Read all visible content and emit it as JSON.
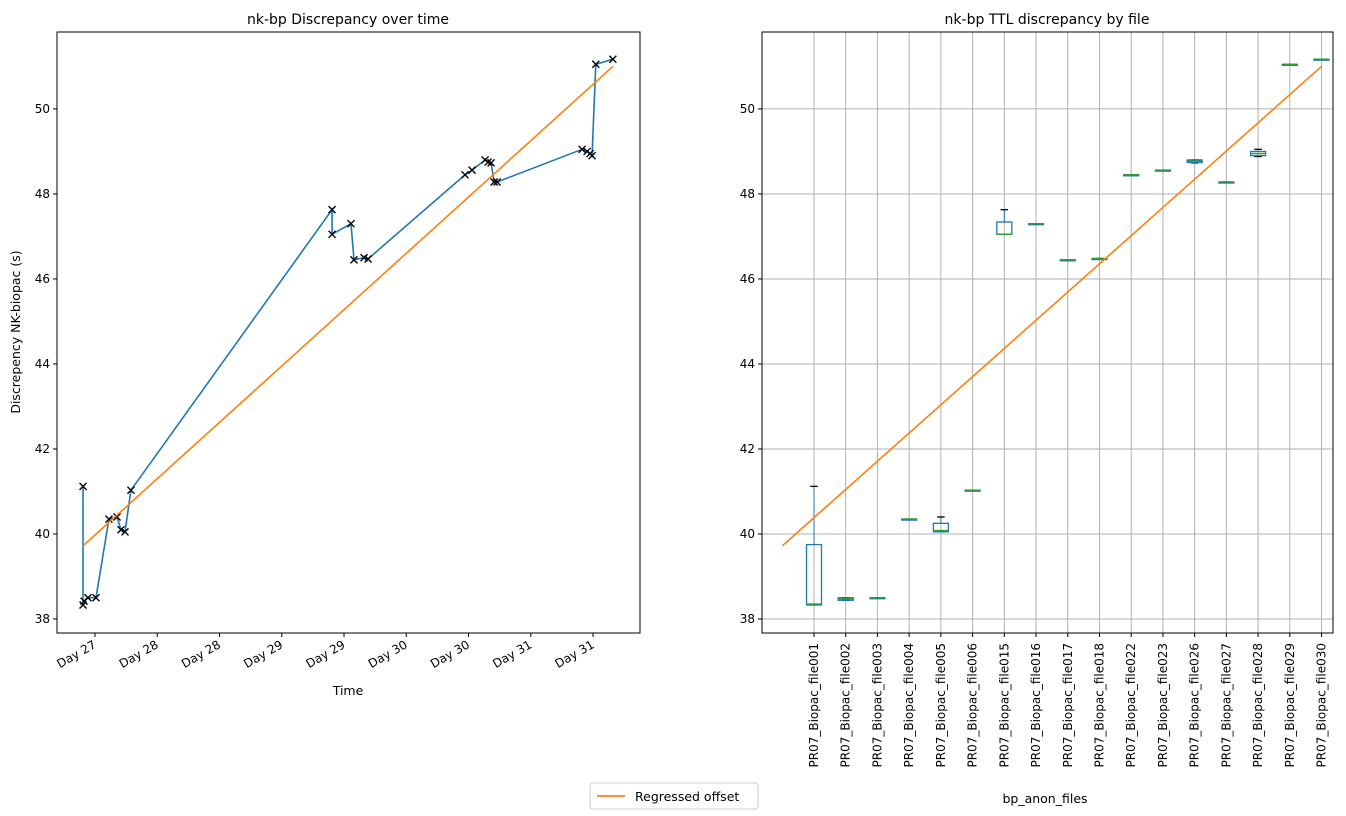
{
  "chart_data": [
    {
      "type": "line",
      "title": "nk-bp Discrepancy over time",
      "xlabel": "Time",
      "ylabel": "Discrepency NK-biopac (s)",
      "xlim": [
        27.195,
        31.877
      ],
      "ylim": [
        37.67,
        51.81
      ],
      "xticks": [
        27.5,
        28,
        28.5,
        29,
        29.5,
        30,
        30.5,
        31,
        31.5
      ],
      "xtick_labels": [
        "Day 27",
        "Day 28",
        "Day 28",
        "Day 29",
        "Day 29",
        "Day 30",
        "Day 30",
        "Day 31",
        "Day 31"
      ],
      "yticks": [
        38,
        40,
        42,
        44,
        46,
        48,
        50
      ],
      "grid": false,
      "series": [
        {
          "color": "#1f77b4",
          "marker": "x",
          "marker_color": "#000000",
          "x": [
            27.404,
            27.404,
            27.412,
            27.444,
            27.508,
            27.612,
            27.677,
            27.709,
            27.741,
            27.789,
            29.404,
            29.404,
            29.556,
            29.58,
            29.661,
            29.693,
            30.472,
            30.528,
            30.633,
            30.657,
            30.681,
            30.705,
            30.729,
            31.412,
            31.452,
            31.476,
            31.492,
            31.522,
            31.659
          ],
          "y": [
            41.12,
            38.33,
            38.42,
            38.5,
            38.5,
            40.35,
            40.4,
            40.1,
            40.05,
            41.03,
            47.63,
            47.05,
            47.3,
            46.45,
            46.5,
            46.47,
            48.45,
            48.56,
            48.8,
            48.75,
            48.73,
            48.28,
            48.28,
            49.05,
            49.0,
            48.95,
            48.9,
            51.05,
            51.17
          ]
        },
        {
          "name": "Regressed offset",
          "color": "#ff7f0e",
          "x": [
            27.404,
            31.659
          ],
          "y": [
            39.72,
            51.0
          ]
        }
      ]
    },
    {
      "type": "box",
      "title": "nk-bp TTL discrepancy by file",
      "xlabel": "bp_anon_files",
      "ylim": [
        37.67,
        51.81
      ],
      "yticks": [
        38,
        40,
        42,
        44,
        46,
        48,
        50
      ],
      "grid": true,
      "categories": [
        "PR07_Biopac_file001",
        "PR07_Biopac_file002",
        "PR07_Biopac_file003",
        "PR07_Biopac_file004",
        "PR07_Biopac_file005",
        "PR07_Biopac_file006",
        "PR07_Biopac_file015",
        "PR07_Biopac_file016",
        "PR07_Biopac_file017",
        "PR07_Biopac_file018",
        "PR07_Biopac_file022",
        "PR07_Biopac_file023",
        "PR07_Biopac_file026",
        "PR07_Biopac_file027",
        "PR07_Biopac_file028",
        "PR07_Biopac_file029",
        "PR07_Biopac_file030"
      ],
      "boxes": [
        {
          "wlo": 38.33,
          "q1": 38.33,
          "med": 38.35,
          "q3": 39.75,
          "whi": 41.12
        },
        {
          "wlo": 38.44,
          "q1": 38.44,
          "med": 38.47,
          "q3": 38.5,
          "whi": 38.5
        },
        {
          "wlo": 38.5,
          "q1": 38.5,
          "med": 38.5,
          "q3": 38.5,
          "whi": 38.5
        },
        {
          "wlo": 40.35,
          "q1": 40.35,
          "med": 40.35,
          "q3": 40.35,
          "whi": 40.35
        },
        {
          "wlo": 40.05,
          "q1": 40.05,
          "med": 40.08,
          "q3": 40.25,
          "whi": 40.4
        },
        {
          "wlo": 41.03,
          "q1": 41.03,
          "med": 41.03,
          "q3": 41.03,
          "whi": 41.03
        },
        {
          "wlo": 47.05,
          "q1": 47.05,
          "med": 47.05,
          "q3": 47.34,
          "whi": 47.63
        },
        {
          "wlo": 47.3,
          "q1": 47.3,
          "med": 47.3,
          "q3": 47.3,
          "whi": 47.3
        },
        {
          "wlo": 46.45,
          "q1": 46.45,
          "med": 46.45,
          "q3": 46.45,
          "whi": 46.45
        },
        {
          "wlo": 46.48,
          "q1": 46.48,
          "med": 46.48,
          "q3": 46.48,
          "whi": 46.48
        },
        {
          "wlo": 48.45,
          "q1": 48.45,
          "med": 48.45,
          "q3": 48.45,
          "whi": 48.45
        },
        {
          "wlo": 48.56,
          "q1": 48.56,
          "med": 48.56,
          "q3": 48.56,
          "whi": 48.56
        },
        {
          "wlo": 48.73,
          "q1": 48.74,
          "med": 48.77,
          "q3": 48.8,
          "whi": 48.8
        },
        {
          "wlo": 48.28,
          "q1": 48.28,
          "med": 48.28,
          "q3": 48.28,
          "whi": 48.28
        },
        {
          "wlo": 48.88,
          "q1": 48.9,
          "med": 48.95,
          "q3": 49.0,
          "whi": 49.05
        },
        {
          "wlo": 51.05,
          "q1": 51.05,
          "med": 51.05,
          "q3": 51.05,
          "whi": 51.05
        },
        {
          "wlo": 51.17,
          "q1": 51.17,
          "med": 51.17,
          "q3": 51.17,
          "whi": 51.17
        }
      ],
      "regression": {
        "name": "Regressed offset",
        "color": "#ff7f0e",
        "x": [
          0,
          17
        ],
        "y": [
          39.72,
          51.0
        ]
      },
      "box_color": "#1f77b4",
      "median_color": "#2ca02c"
    }
  ],
  "legend": {
    "label": "Regressed offset",
    "color": "#ff7f0e",
    "placement": "bottom-center"
  }
}
